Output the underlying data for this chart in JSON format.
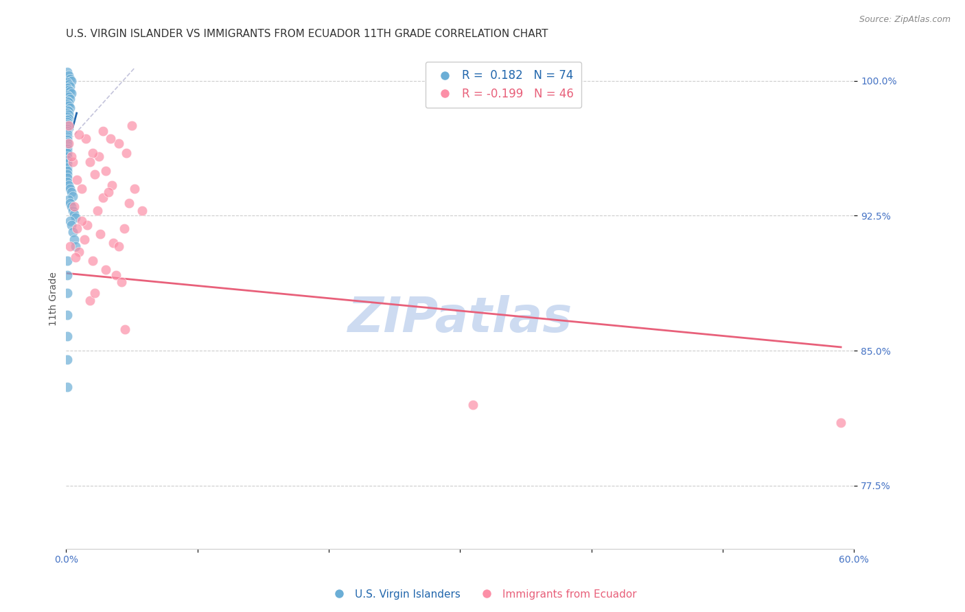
{
  "title": "U.S. VIRGIN ISLANDER VS IMMIGRANTS FROM ECUADOR 11TH GRADE CORRELATION CHART",
  "source": "Source: ZipAtlas.com",
  "ylabel": "11th Grade",
  "xmin": 0.0,
  "xmax": 0.6,
  "ymin": 0.74,
  "ymax": 1.018,
  "yticks": [
    0.775,
    0.85,
    0.925,
    1.0
  ],
  "ytick_labels": [
    "77.5%",
    "85.0%",
    "92.5%",
    "100.0%"
  ],
  "xticks": [
    0.0,
    0.1,
    0.2,
    0.3,
    0.4,
    0.5,
    0.6
  ],
  "xtick_labels": [
    "0.0%",
    "",
    "",
    "",
    "",
    "",
    "60.0%"
  ],
  "blue_r": 0.182,
  "blue_n": 74,
  "pink_r": -0.199,
  "pink_n": 46,
  "blue_color": "#6baed6",
  "pink_color": "#fc8fa7",
  "blue_line_color": "#2166ac",
  "pink_line_color": "#e8607a",
  "legend_blue_label": "U.S. Virgin Islanders",
  "legend_pink_label": "Immigrants from Ecuador",
  "watermark": "ZIPatlas",
  "blue_dots_x": [
    0.001,
    0.002,
    0.003,
    0.004,
    0.001,
    0.002,
    0.003,
    0.001,
    0.002,
    0.003,
    0.004,
    0.001,
    0.002,
    0.003,
    0.001,
    0.002,
    0.001,
    0.002,
    0.003,
    0.001,
    0.002,
    0.001,
    0.002,
    0.001,
    0.002,
    0.001,
    0.001,
    0.001,
    0.001,
    0.001,
    0.001,
    0.001,
    0.001,
    0.001,
    0.001,
    0.001,
    0.001,
    0.001,
    0.001,
    0.001,
    0.001,
    0.001,
    0.001,
    0.001,
    0.001,
    0.001,
    0.001,
    0.001,
    0.001,
    0.001,
    0.001,
    0.001,
    0.002,
    0.003,
    0.004,
    0.005,
    0.002,
    0.003,
    0.004,
    0.005,
    0.006,
    0.007,
    0.003,
    0.004,
    0.005,
    0.006,
    0.007,
    0.001,
    0.001,
    0.001,
    0.001,
    0.001,
    0.001,
    0.001
  ],
  "blue_dots_y": [
    1.005,
    1.003,
    1.001,
    1.0,
    0.999,
    0.998,
    0.997,
    0.996,
    0.995,
    0.994,
    0.993,
    0.992,
    0.991,
    0.99,
    0.989,
    0.988,
    0.987,
    0.986,
    0.985,
    0.984,
    0.983,
    0.982,
    0.981,
    0.98,
    0.979,
    0.978,
    0.977,
    0.976,
    0.975,
    0.974,
    0.973,
    0.972,
    0.971,
    0.97,
    0.969,
    0.968,
    0.967,
    0.966,
    0.965,
    0.964,
    0.963,
    0.962,
    0.961,
    0.96,
    0.958,
    0.956,
    0.954,
    0.952,
    0.95,
    0.948,
    0.946,
    0.944,
    0.942,
    0.94,
    0.938,
    0.936,
    0.934,
    0.932,
    0.93,
    0.928,
    0.926,
    0.924,
    0.922,
    0.92,
    0.916,
    0.912,
    0.908,
    0.9,
    0.892,
    0.882,
    0.87,
    0.858,
    0.845,
    0.83
  ],
  "pink_dots_x": [
    0.002,
    0.015,
    0.005,
    0.025,
    0.01,
    0.02,
    0.03,
    0.04,
    0.008,
    0.012,
    0.018,
    0.022,
    0.028,
    0.035,
    0.006,
    0.016,
    0.024,
    0.032,
    0.014,
    0.026,
    0.01,
    0.036,
    0.048,
    0.052,
    0.058,
    0.04,
    0.044,
    0.02,
    0.03,
    0.038,
    0.042,
    0.018,
    0.022,
    0.05,
    0.046,
    0.034,
    0.028,
    0.012,
    0.008,
    0.003,
    0.007,
    0.045,
    0.31,
    0.59,
    0.002,
    0.004
  ],
  "pink_dots_y": [
    0.975,
    0.968,
    0.955,
    0.958,
    0.97,
    0.96,
    0.95,
    0.965,
    0.945,
    0.94,
    0.955,
    0.948,
    0.935,
    0.942,
    0.93,
    0.92,
    0.928,
    0.938,
    0.912,
    0.915,
    0.905,
    0.91,
    0.932,
    0.94,
    0.928,
    0.908,
    0.918,
    0.9,
    0.895,
    0.892,
    0.888,
    0.878,
    0.882,
    0.975,
    0.96,
    0.968,
    0.972,
    0.922,
    0.918,
    0.908,
    0.902,
    0.862,
    0.82,
    0.81,
    0.965,
    0.958
  ],
  "blue_line_x": [
    0.001,
    0.008
  ],
  "blue_line_y": [
    0.963,
    0.982
  ],
  "pink_line_x": [
    0.001,
    0.59
  ],
  "pink_line_y": [
    0.893,
    0.852
  ],
  "diag_line_x": [
    0.0,
    0.052
  ],
  "diag_line_y": [
    0.965,
    1.007
  ],
  "background_color": "#ffffff",
  "grid_color": "#cccccc",
  "title_color": "#333333",
  "axis_color": "#4472c4",
  "title_fontsize": 11,
  "label_fontsize": 10,
  "tick_fontsize": 10,
  "watermark_color": "#c8d8f0",
  "watermark_fontsize": 52
}
